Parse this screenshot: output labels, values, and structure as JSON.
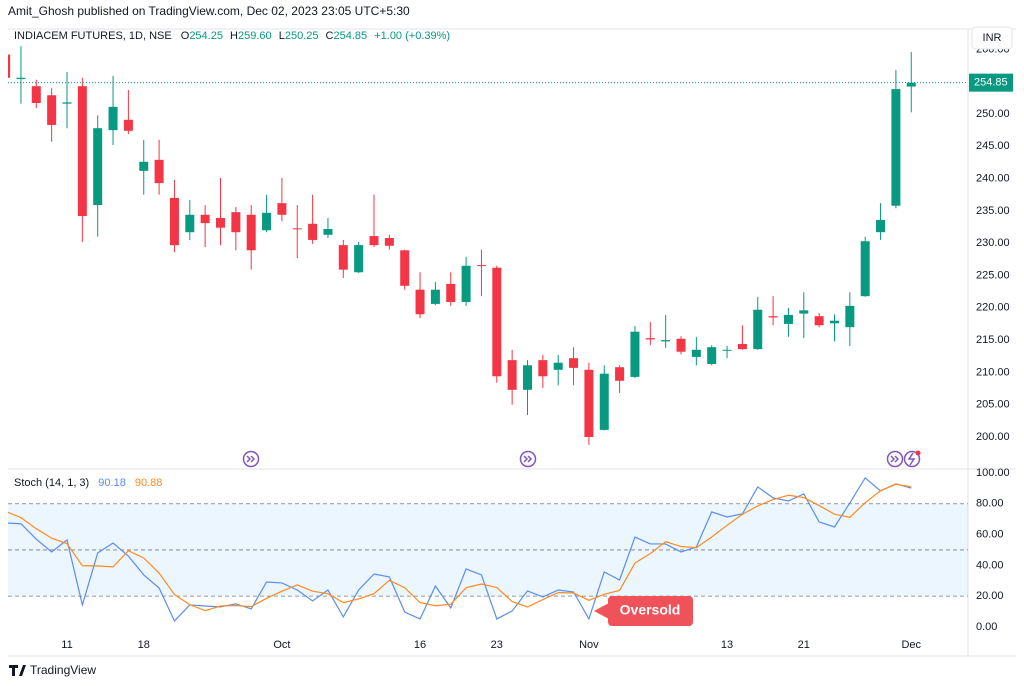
{
  "header": {
    "byline": "Amit_Ghosh published on TradingView.com, Dec 02, 2023 23:05 UTC+5:30",
    "currency": "INR"
  },
  "footer": {
    "brand": "TradingView"
  },
  "chart_data": [
    {
      "type": "candlestick",
      "legend": {
        "symbol": "INDIACEM FUTURES, 1D, NSE",
        "open_label": "O",
        "open": "254.25",
        "high_label": "H",
        "high": "259.60",
        "low_label": "L",
        "low": "250.25",
        "close_label": "C",
        "close": "254.85",
        "change": "+1.00 (+0.39%)"
      },
      "categories": [
        null,
        null,
        null,
        null,
        "11",
        null,
        null,
        null,
        null,
        "18",
        null,
        null,
        null,
        null,
        null,
        null,
        null,
        null,
        "Oct",
        null,
        null,
        null,
        null,
        null,
        null,
        null,
        null,
        "16",
        null,
        null,
        null,
        null,
        "23",
        null,
        null,
        null,
        null,
        null,
        "Nov",
        null,
        null,
        null,
        null,
        null,
        null,
        null,
        null,
        "13",
        null,
        null,
        null,
        null,
        "21",
        null,
        null,
        null,
        null,
        null,
        null,
        "Dec"
      ],
      "open": [
        259.2,
        255.4,
        254.3,
        252.9,
        251.6,
        254.3,
        235.9,
        247.5,
        249.1,
        241.2,
        242.9,
        237.0,
        231.7,
        234.4,
        233.9,
        234.8,
        234.4,
        232.0,
        236.2,
        232.3,
        233.0,
        231.3,
        229.7,
        225.5,
        231.1,
        230.8,
        228.9,
        222.8,
        220.6,
        223.7,
        220.9,
        226.6,
        226.2,
        211.9,
        207.3,
        211.9,
        210.4,
        212.2,
        210.4,
        201.1,
        210.8,
        209.3,
        215.3,
        214.8,
        215.2,
        212.4,
        211.3,
        213.4,
        214.4,
        213.6,
        218.7,
        217.5,
        219.1,
        218.7,
        217.6,
        217.0,
        221.8,
        231.7,
        235.8,
        254.25
      ],
      "high": [
        259.5,
        260.5,
        255.3,
        254.0,
        256.5,
        255.6,
        249.8,
        255.9,
        253.7,
        246.0,
        246.0,
        239.8,
        236.7,
        235.9,
        240.1,
        235.6,
        235.9,
        237.5,
        240.1,
        235.9,
        237.5,
        233.9,
        230.5,
        230.2,
        237.5,
        231.3,
        229.0,
        225.5,
        224.0,
        225.5,
        227.9,
        229.0,
        226.5,
        213.5,
        211.9,
        212.7,
        212.7,
        213.9,
        211.5,
        211.1,
        211.1,
        217.2,
        217.8,
        218.9,
        215.6,
        215.5,
        214.2,
        214.1,
        217.3,
        221.7,
        221.8,
        220.0,
        222.4,
        219.2,
        219.0,
        222.4,
        231.0,
        236.2,
        256.8,
        259.6
      ],
      "low": [
        255.5,
        251.6,
        250.9,
        245.7,
        247.8,
        230.2,
        231.0,
        245.2,
        246.9,
        237.5,
        237.5,
        228.6,
        230.5,
        229.4,
        229.7,
        228.9,
        225.9,
        231.7,
        233.4,
        227.7,
        229.9,
        230.8,
        224.6,
        225.4,
        229.4,
        229.0,
        222.8,
        218.4,
        220.4,
        220.3,
        220.3,
        221.8,
        208.4,
        205.0,
        203.4,
        207.6,
        208.0,
        208.0,
        198.8,
        201.0,
        206.8,
        209.1,
        214.2,
        213.8,
        212.8,
        211.1,
        211.1,
        212.2,
        213.5,
        213.5,
        217.3,
        215.5,
        215.3,
        217.0,
        214.8,
        214.1,
        221.7,
        230.5,
        235.4,
        250.25
      ],
      "close": [
        255.6,
        255.6,
        251.7,
        248.3,
        251.8,
        234.2,
        247.8,
        251.1,
        247.4,
        242.6,
        239.3,
        229.7,
        234.4,
        233.1,
        232.4,
        231.7,
        228.9,
        234.7,
        234.4,
        232.2,
        230.5,
        232.2,
        225.9,
        229.7,
        229.7,
        229.6,
        223.4,
        219.0,
        222.8,
        220.9,
        226.5,
        226.5,
        209.4,
        207.3,
        211.1,
        209.4,
        211.5,
        210.7,
        200.0,
        209.8,
        208.7,
        216.3,
        215.1,
        215.0,
        213.2,
        213.5,
        213.9,
        213.5,
        213.6,
        219.7,
        218.5,
        218.9,
        219.6,
        217.3,
        218.0,
        220.3,
        230.3,
        233.6,
        253.85,
        254.85
      ],
      "up_color": "#089981",
      "down_color": "#f23645",
      "ylim": [
        195.2,
        263.0
      ],
      "yticks": [
        {
          "value": 200,
          "label": "200.00"
        },
        {
          "value": 205,
          "label": "205.00"
        },
        {
          "value": 210,
          "label": "210.00"
        },
        {
          "value": 215,
          "label": "215.00"
        },
        {
          "value": 220,
          "label": "220.00"
        },
        {
          "value": 225,
          "label": "225.00"
        },
        {
          "value": 230,
          "label": "230.00"
        },
        {
          "value": 235,
          "label": "235.00"
        },
        {
          "value": 240,
          "label": "240.00"
        },
        {
          "value": 245,
          "label": "245.00"
        },
        {
          "value": 250,
          "label": "250.00"
        },
        {
          "value": 260,
          "label": "260.00"
        }
      ],
      "last_price": {
        "value": 254.85,
        "label": "254.85"
      },
      "grid": false
    },
    {
      "type": "line",
      "title": "Stoch (14, 1, 3)",
      "series": [
        {
          "color": "#5b8def",
          "values": [
            67.5,
            67,
            57,
            48.7,
            56.5,
            14.3,
            48,
            54.5,
            46,
            33.8,
            25.3,
            3.9,
            14.3,
            13.6,
            13,
            15,
            11.7,
            29.2,
            28.6,
            24,
            16.9,
            24,
            6.5,
            24,
            34.4,
            32.5,
            9.7,
            5.2,
            26.6,
            12.3,
            37.7,
            33.8,
            5.2,
            10.4,
            23.4,
            19.5,
            24,
            22.7,
            5.2,
            35.7,
            30.5,
            58.4,
            53.9,
            53.9,
            48.7,
            51.9,
            74.7,
            71.4,
            73.4,
            90.9,
            83.8,
            81.8,
            86.4,
            68.2,
            64.9,
            80.5,
            96.8,
            88.3,
            92.9,
            90.18
          ]
        },
        {
          "color": "#ff8a1f",
          "values": [
            75,
            71,
            63.8,
            57.6,
            54.1,
            39.8,
            39.6,
            39,
            49.5,
            44.8,
            35,
            21,
            14.5,
            10.6,
            13.6,
            13.9,
            13.2,
            18.6,
            23.2,
            27.3,
            23.2,
            21.6,
            15.8,
            18.2,
            21.6,
            30.3,
            25.5,
            15.8,
            13.8,
            14.7,
            25.5,
            27.9,
            25.6,
            16.5,
            13,
            17.8,
            22.3,
            22.1,
            17.3,
            21.2,
            23.8,
            41.5,
            47.6,
            55.4,
            52.2,
            51.5,
            58.4,
            66,
            73.2,
            78.6,
            82.7,
            85.5,
            84,
            78.8,
            73.2,
            71.2,
            80.7,
            88.5,
            92.7,
            90.88
          ]
        }
      ],
      "levels": [
        80,
        50,
        20
      ],
      "annotation": "Oversold",
      "ylim": [
        -18.2,
        101.9
      ],
      "yticks": [
        {
          "value": 0,
          "label": "0.00"
        },
        {
          "value": 20,
          "label": "20.00"
        },
        {
          "value": 40,
          "label": "40.00"
        },
        {
          "value": 60,
          "label": "60.00"
        },
        {
          "value": 80,
          "label": "80.00"
        },
        {
          "value": 100,
          "label": "100.00"
        }
      ],
      "grid": false
    }
  ]
}
